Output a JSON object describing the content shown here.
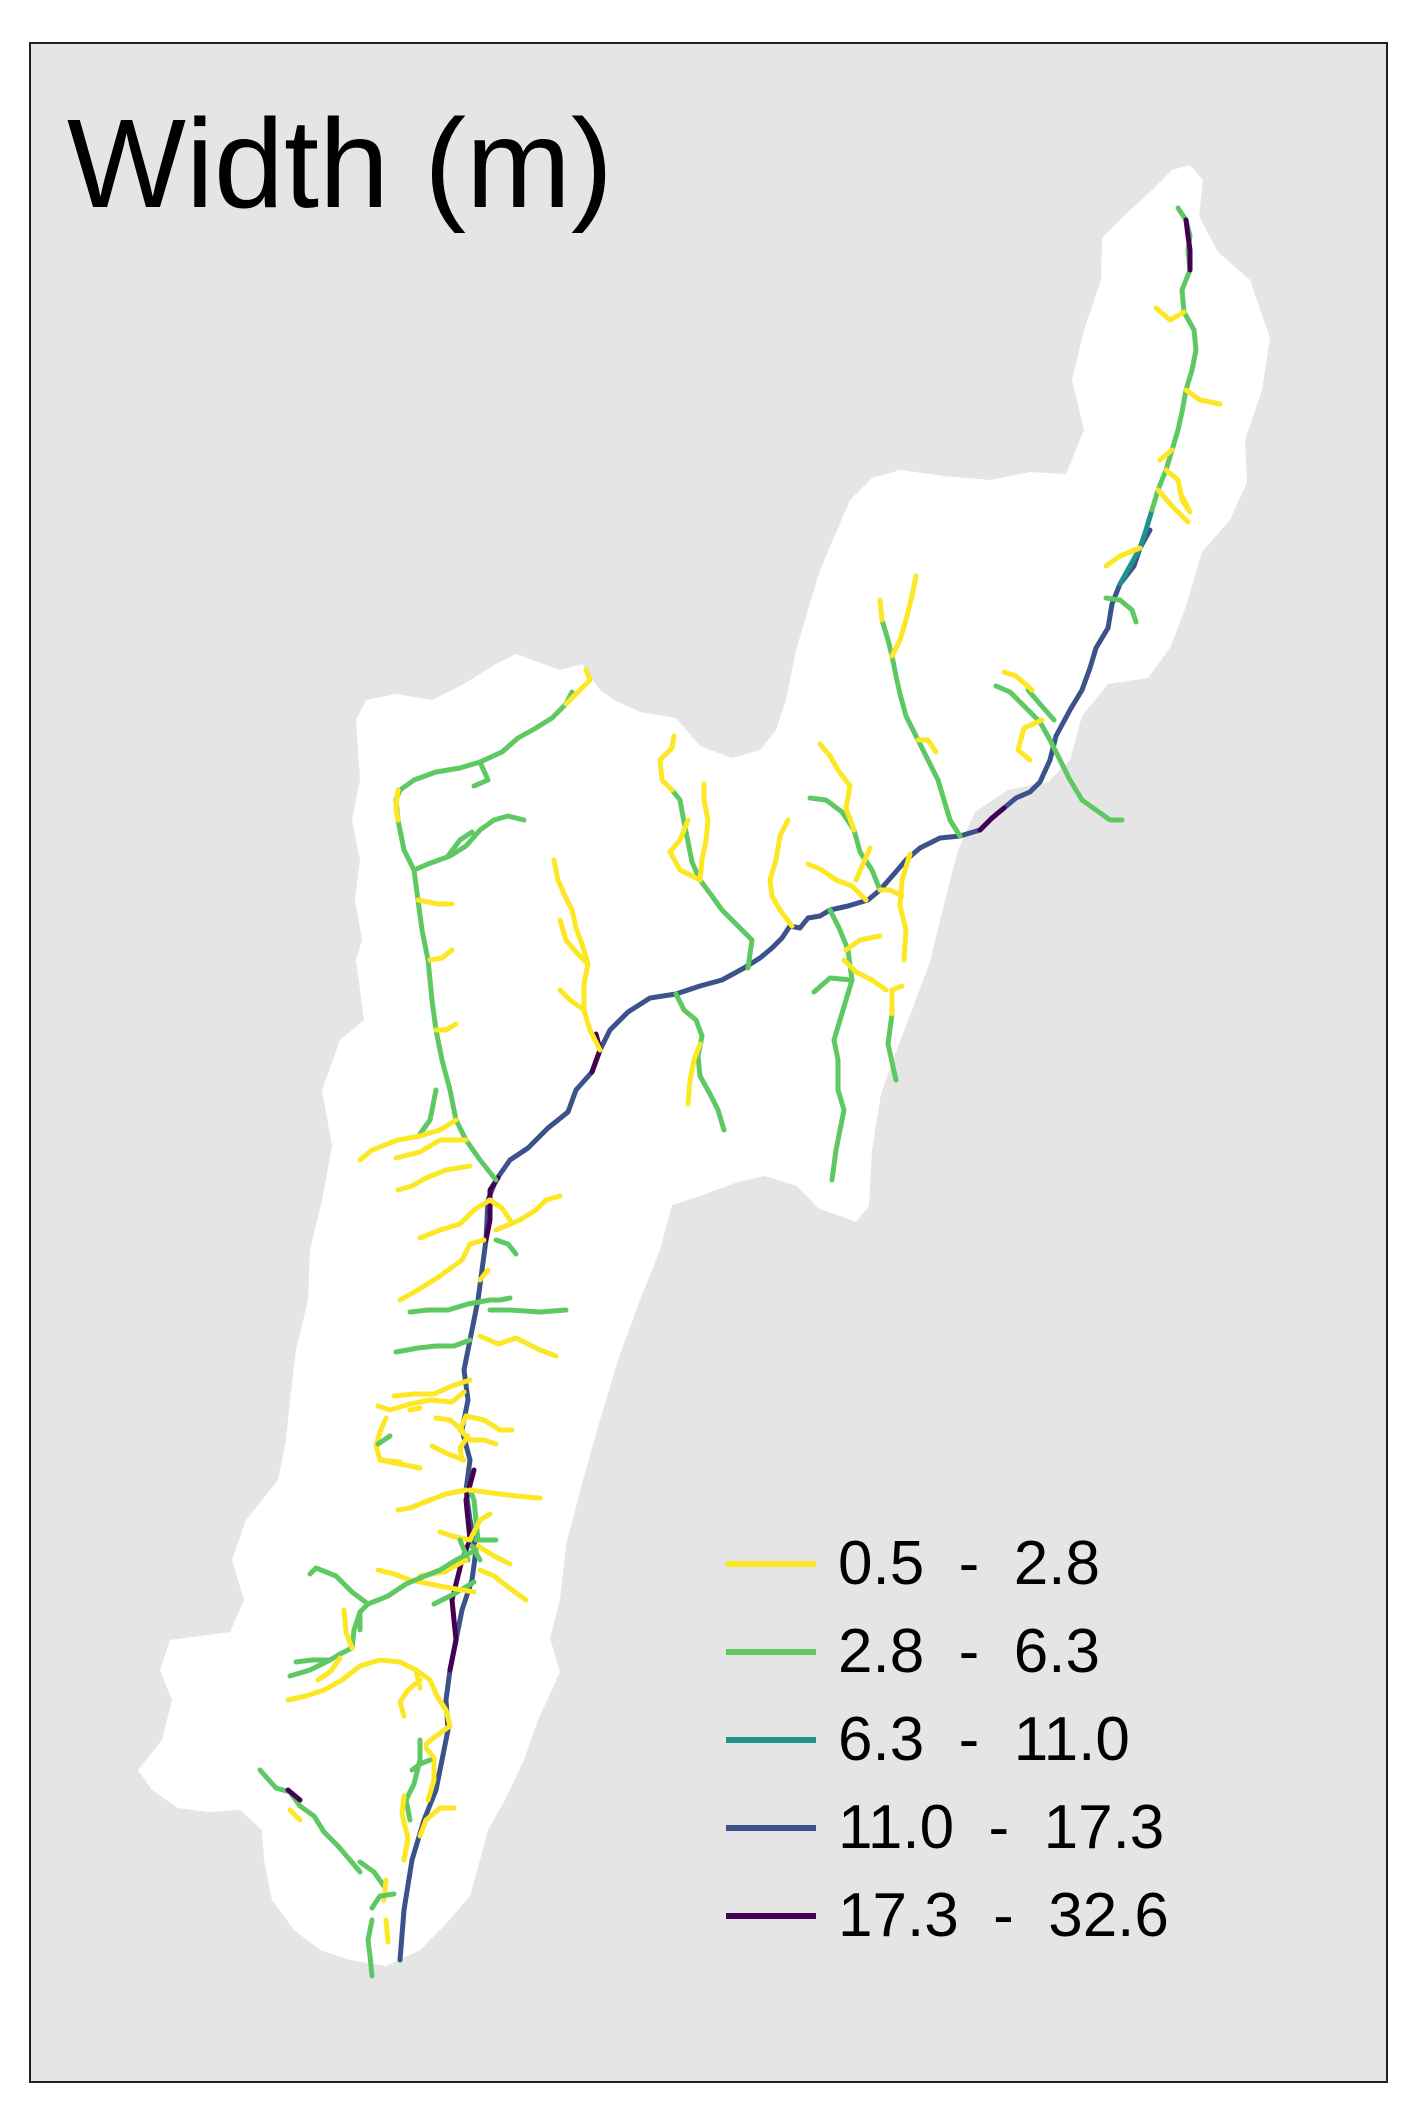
{
  "title": "Width (m)",
  "colors": {
    "panel_background": "#e5e5e5",
    "watershed_fill": "#ffffff"
  },
  "legend": [
    {
      "label": "0.5  -  2.8",
      "color": "#fde725"
    },
    {
      "label": "2.8  -  6.3",
      "color": "#5ec962"
    },
    {
      "label": "6.3  -  11.0",
      "color": "#21918c"
    },
    {
      "label": "11.0  -  17.3",
      "color": "#3b528b"
    },
    {
      "label": "17.3  -  32.6",
      "color": "#440154"
    }
  ]
}
